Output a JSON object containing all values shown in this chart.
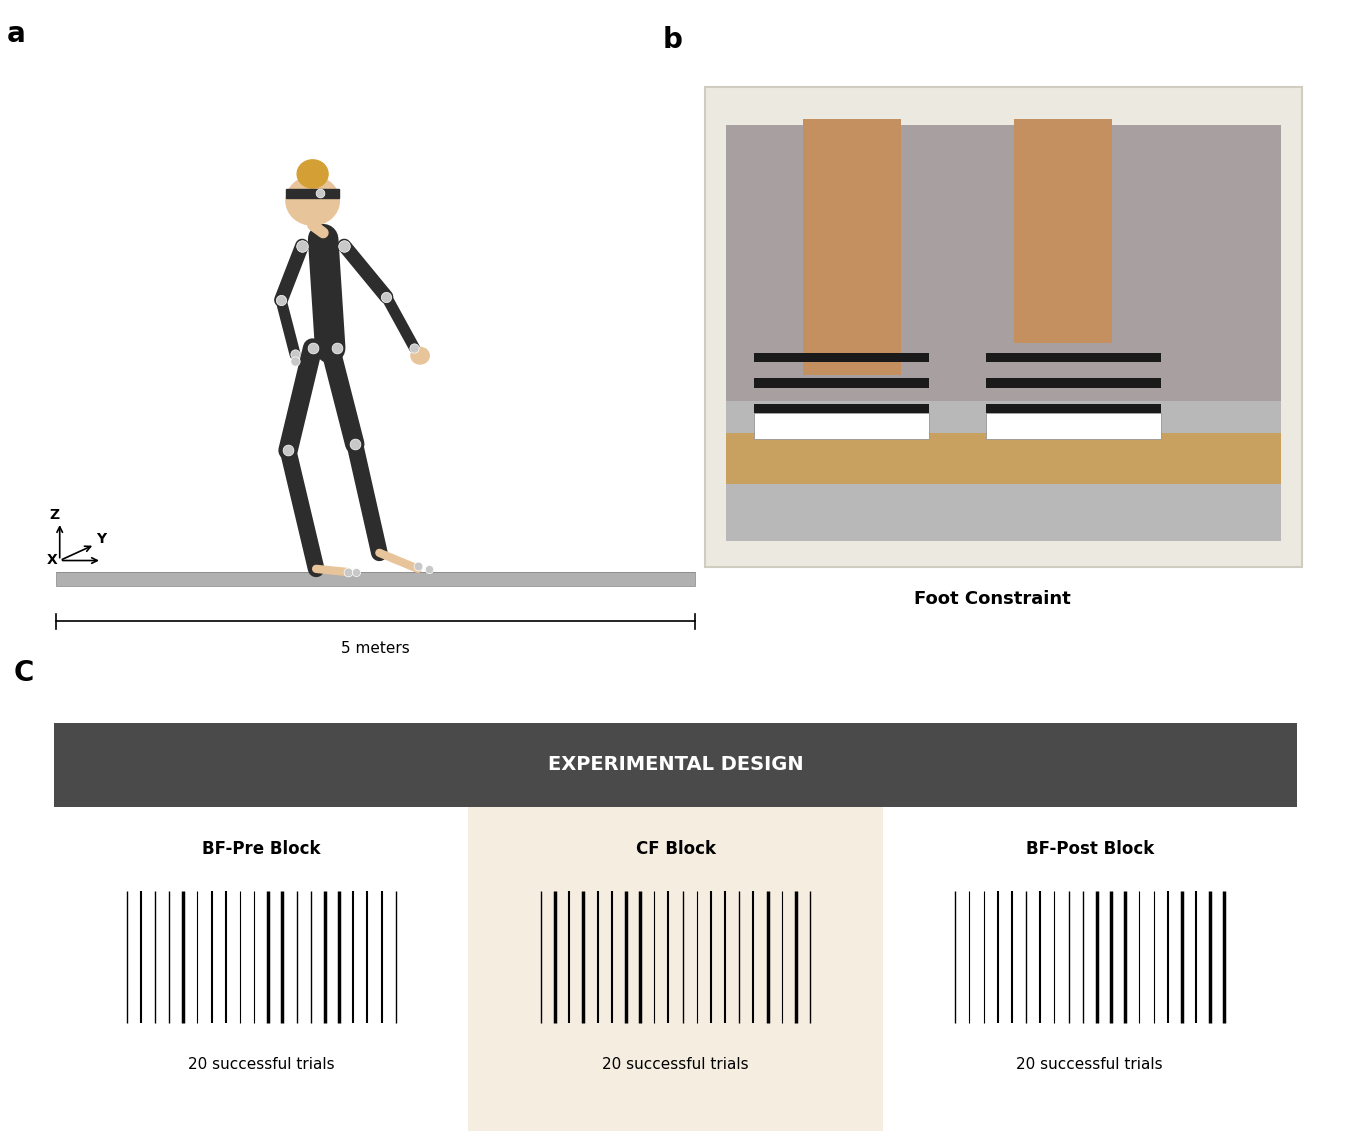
{
  "fig_width": 13.51,
  "fig_height": 11.43,
  "bg_color": "#ffffff",
  "panel_a_label": "a",
  "panel_b_label": "b",
  "panel_c_label": "C",
  "beam_color": "#999999",
  "beam_length_label": "5 meters",
  "axis_labels": [
    "X",
    "Y",
    "Z"
  ],
  "exp_design_header": "EXPERIMENTAL DESIGN",
  "exp_design_header_bg": "#4a4a4a",
  "exp_design_header_color": "#ffffff",
  "blocks": [
    "BF-Pre Block",
    "CF Block",
    "BF-Post Block"
  ],
  "block_subtitle": "20 successful trials",
  "cf_block_bg": "#f5ede0",
  "num_barcode_lines": 20,
  "body_color": "#2d2d2d",
  "skin_color": "#e8c49a",
  "marker_color": "#c8c8c8",
  "foot_constraint_label": "Foot Constraint",
  "beam_fill": "#b0b0b0"
}
